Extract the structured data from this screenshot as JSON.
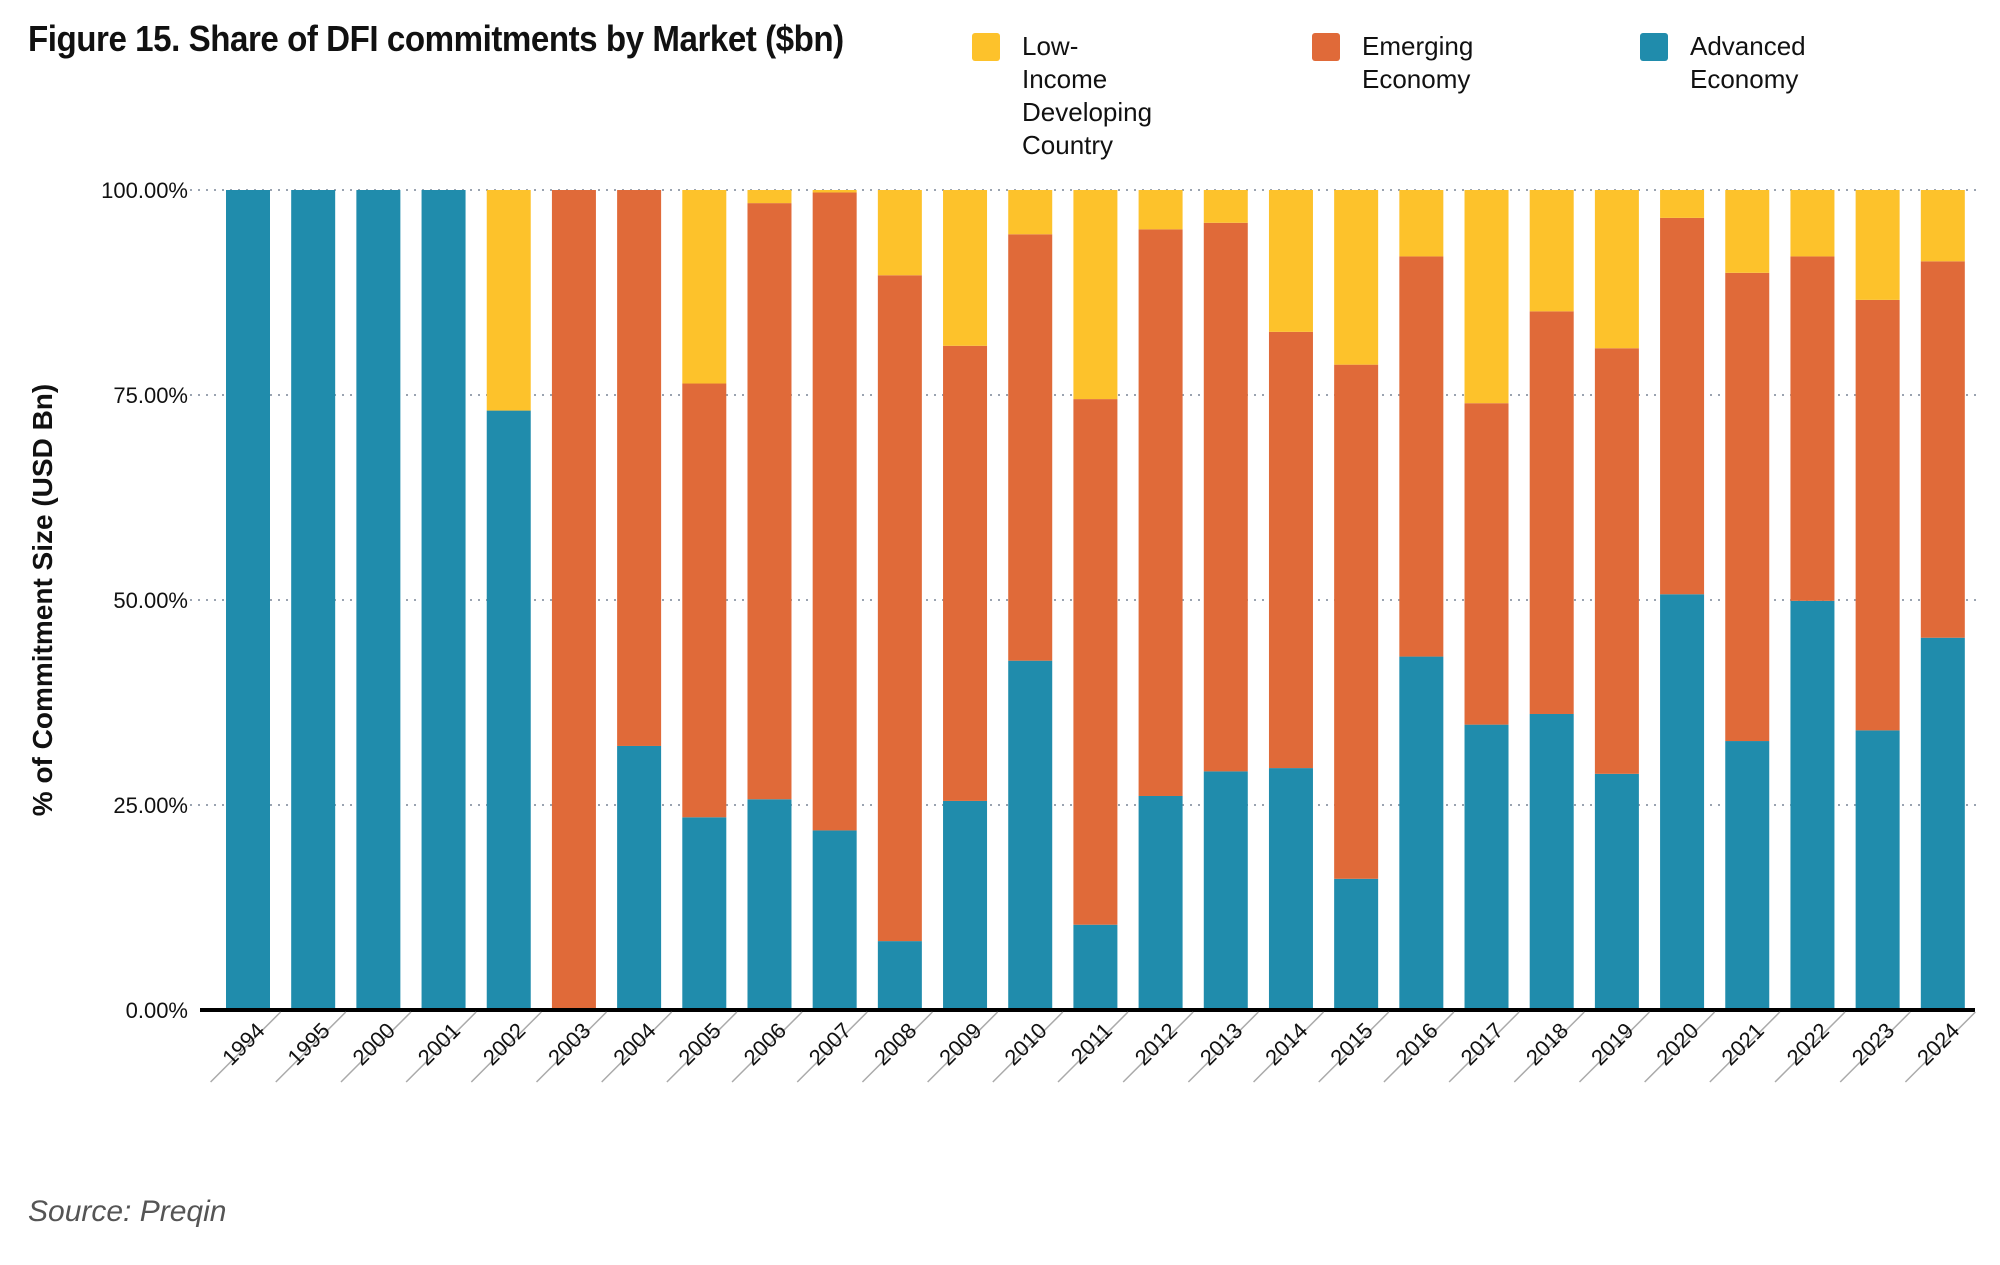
{
  "title": "Figure 15.  Share of DFI commitments by Market ($bn)",
  "source": "Source: Preqin",
  "legend": [
    {
      "name": "Low-Income\nDeveloping Country",
      "color": "#FDC22B"
    },
    {
      "name": "Emerging Economy",
      "color": "#E06A39"
    },
    {
      "name": "Advanced Economy",
      "color": "#208CAC"
    }
  ],
  "chart_data": {
    "type": "bar",
    "stacked": true,
    "title": "Figure 15.  Share of DFI commitments by Market ($bn)",
    "xlabel": "",
    "ylabel": "% of Commitment Size (USD Bn)",
    "ylim": [
      0,
      100
    ],
    "yticks": [
      0,
      25,
      50,
      75,
      100
    ],
    "ytick_labels": [
      "0.00%",
      "25.00%",
      "50.00%",
      "75.00%",
      "100.00%"
    ],
    "grid": "horizontal-dotted",
    "legend_position": "top-right",
    "categories": [
      "1994",
      "1995",
      "2000",
      "2001",
      "2002",
      "2003",
      "2004",
      "2005",
      "2006",
      "2007",
      "2008",
      "2009",
      "2010",
      "2011",
      "2012",
      "2013",
      "2014",
      "2015",
      "2016",
      "2017",
      "2018",
      "2019",
      "2020",
      "2021",
      "2022",
      "2023",
      "2024"
    ],
    "series": [
      {
        "name": "Advanced Economy",
        "color": "#208CAC",
        "values": [
          100,
          100,
          100,
          100,
          73.1,
          0,
          32.2,
          23.5,
          25.7,
          21.9,
          8.4,
          25.5,
          42.6,
          10.4,
          26.1,
          29.1,
          29.5,
          16.0,
          43.1,
          34.8,
          36.1,
          28.8,
          50.7,
          32.8,
          49.9,
          34.1,
          45.4
        ]
      },
      {
        "name": "Emerging Economy",
        "color": "#E06A39",
        "values": [
          0,
          0,
          0,
          0,
          0,
          100,
          67.8,
          52.9,
          72.7,
          77.8,
          81.2,
          55.5,
          52.0,
          64.1,
          69.1,
          66.9,
          53.2,
          62.7,
          48.8,
          39.2,
          49.1,
          51.9,
          45.9,
          57.1,
          42.0,
          52.5,
          45.9
        ]
      },
      {
        "name": "Low-Income Developing Country",
        "color": "#FDC22B",
        "values": [
          0,
          0,
          0,
          0,
          26.9,
          0,
          0,
          23.6,
          1.6,
          0.3,
          10.4,
          19.0,
          5.4,
          25.5,
          4.8,
          4.0,
          17.3,
          21.3,
          8.1,
          26.0,
          14.8,
          19.3,
          3.4,
          10.1,
          8.1,
          13.4,
          8.7
        ]
      }
    ]
  }
}
